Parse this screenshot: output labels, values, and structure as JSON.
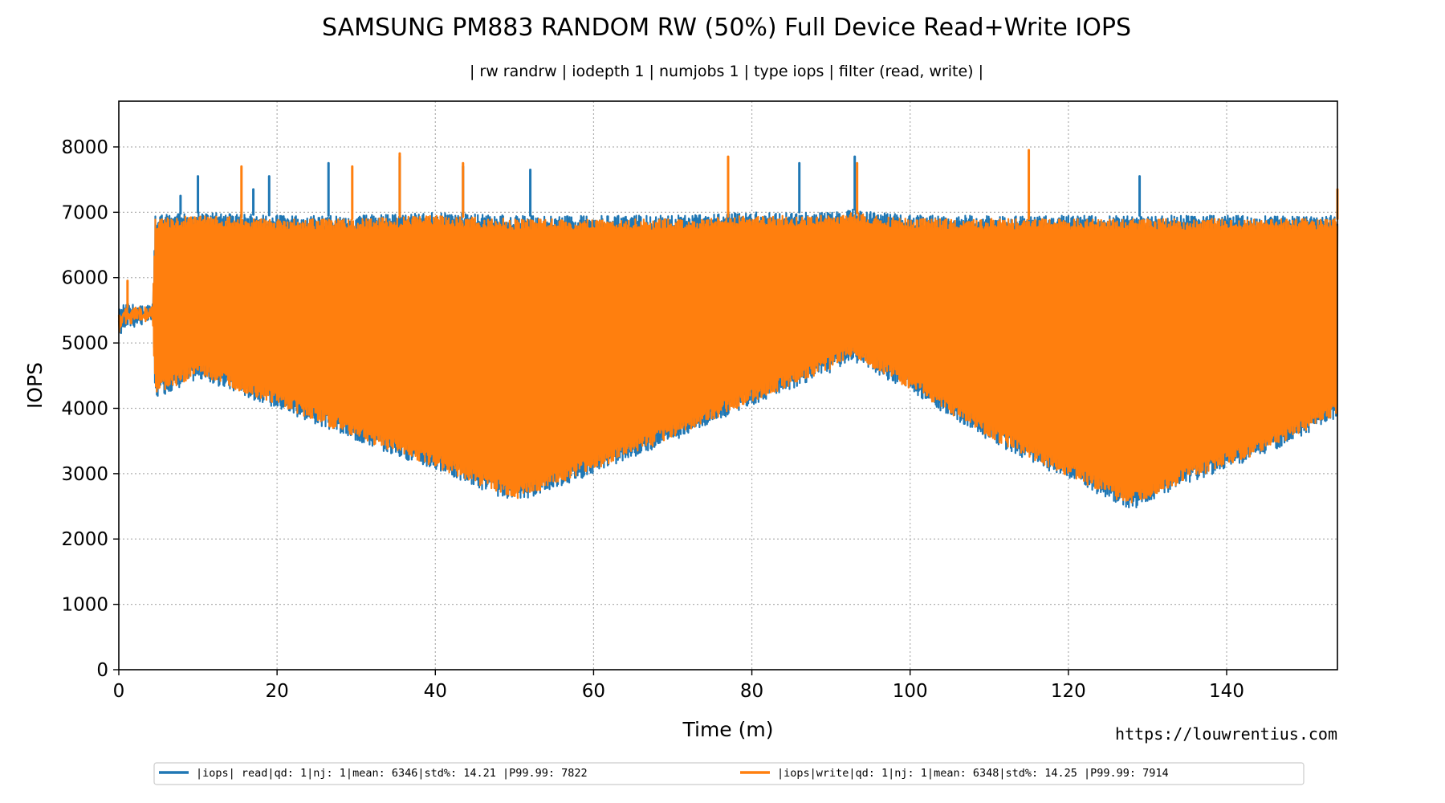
{
  "chart_data": {
    "type": "line",
    "title": "SAMSUNG PM883 RANDOM RW (50%) Full Device Read+Write IOPS",
    "subtitle": "| rw randrw | iodepth 1 | numjobs 1 | type iops | filter (read, write) |",
    "xlabel": "Time (m)",
    "ylabel": "IOPS",
    "xlim": [
      0,
      154
    ],
    "ylim": [
      0,
      8700
    ],
    "xticks": [
      "0",
      "20",
      "40",
      "60",
      "80",
      "100",
      "120",
      "140"
    ],
    "yticks": [
      "0",
      "1000",
      "2000",
      "3000",
      "4000",
      "5000",
      "6000",
      "7000",
      "8000"
    ],
    "grid": true,
    "legend_position": "bottom",
    "watermark": "https://louwrentius.com",
    "series": [
      {
        "name": "|iops| read|qd:  1|nj:  1|mean:   6346|std%:  14.21 |P99.99:   7822",
        "color": "#1f77b4",
        "envelope": {
          "x": [
            0,
            0.5,
            4.3,
            4.6,
            10,
            20,
            30,
            40,
            50,
            60,
            70,
            80,
            90,
            92.5,
            100,
            110,
            120,
            128,
            135,
            145,
            154
          ],
          "upper": [
            5500,
            5600,
            5600,
            6950,
            7000,
            6950,
            6950,
            7000,
            6950,
            6950,
            6950,
            7000,
            7000,
            7050,
            6950,
            6950,
            6950,
            6950,
            6950,
            6950,
            6950
          ],
          "lower": [
            5000,
            5200,
            5300,
            4150,
            4450,
            4000,
            3500,
            3050,
            2550,
            3000,
            3500,
            4050,
            4550,
            4750,
            4250,
            3500,
            2900,
            2450,
            2850,
            3300,
            3850
          ]
        },
        "spikes": [
          [
            7.8,
            7250
          ],
          [
            10,
            7550
          ],
          [
            17,
            7350
          ],
          [
            19,
            7550
          ],
          [
            26.5,
            7750
          ],
          [
            35.5,
            7850
          ],
          [
            43.5,
            7700
          ],
          [
            52,
            7650
          ],
          [
            86,
            7750
          ],
          [
            93,
            7850
          ],
          [
            129,
            7550
          ]
        ]
      },
      {
        "name": "|iops|write|qd:  1|nj:  1|mean:   6348|std%:  14.25 |P99.99:   7914",
        "color": "#ff7f0e",
        "envelope": {
          "x": [
            0,
            0.5,
            4.3,
            4.6,
            10,
            20,
            30,
            40,
            50,
            60,
            70,
            80,
            90,
            92.5,
            100,
            110,
            120,
            128,
            135,
            145,
            154
          ],
          "upper": [
            5450,
            5550,
            5550,
            6900,
            6950,
            6900,
            6900,
            6950,
            6900,
            6900,
            6900,
            6950,
            6950,
            7000,
            6900,
            6900,
            6900,
            6900,
            6900,
            6900,
            6900
          ],
          "lower": [
            5050,
            5250,
            5350,
            4200,
            4500,
            4050,
            3550,
            3100,
            2600,
            3050,
            3550,
            4100,
            4600,
            4800,
            4300,
            3550,
            2950,
            2500,
            2900,
            3350,
            3900
          ]
        },
        "spikes": [
          [
            1.1,
            5950
          ],
          [
            15.5,
            7700
          ],
          [
            29.5,
            7700
          ],
          [
            35.5,
            7900
          ],
          [
            43.5,
            7750
          ],
          [
            77,
            7850
          ],
          [
            93.3,
            7750
          ],
          [
            115,
            7950
          ],
          [
            154,
            7350
          ]
        ]
      }
    ]
  }
}
